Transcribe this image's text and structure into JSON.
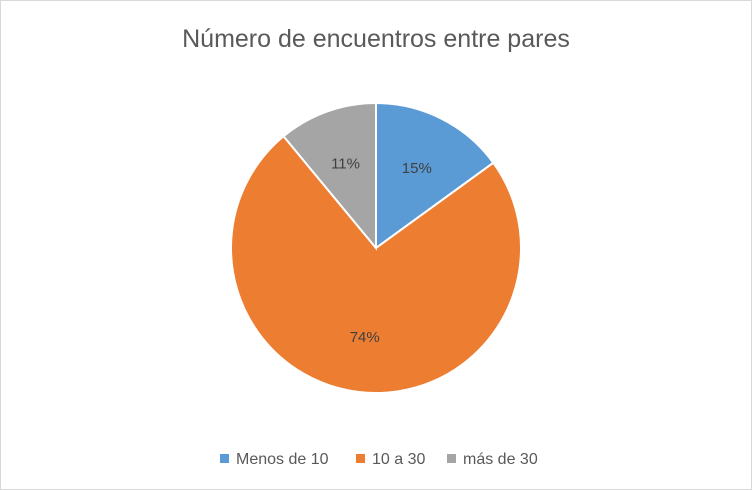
{
  "chart_data": {
    "type": "pie",
    "title": "Número de encuentros entre pares",
    "categories": [
      "Menos de 10",
      "10 a 30",
      "más de 30"
    ],
    "values": [
      15,
      74,
      11
    ],
    "value_labels": [
      "15%",
      "74%",
      "11%"
    ],
    "colors": [
      "#5b9bd5",
      "#ed7d31",
      "#a5a5a5"
    ],
    "start": "top, clockwise",
    "legend": "bottom"
  }
}
